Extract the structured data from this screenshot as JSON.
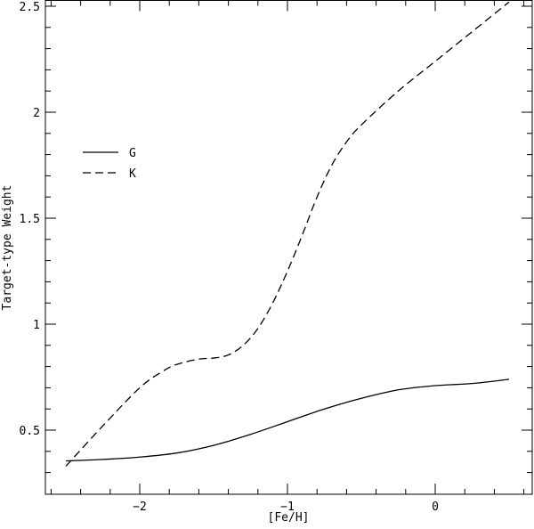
{
  "chart_data": {
    "type": "line",
    "title": "",
    "xlabel": "[Fe/H]",
    "ylabel": "Target-type Weight",
    "xlim": [
      -2.64,
      0.66
    ],
    "ylim": [
      0.2,
      2.5
    ],
    "x_ticks": [
      -2,
      -1,
      0
    ],
    "x_tick_labels": [
      "−2",
      "−1",
      "0"
    ],
    "y_ticks": [
      0.5,
      1,
      1.5,
      2,
      2.5
    ],
    "y_tick_labels": [
      "0.5",
      "1",
      "1.5",
      "2",
      "2.5"
    ],
    "grid": false,
    "legend_position": "upper left",
    "series": [
      {
        "name": "G",
        "style": "solid",
        "x": [
          -2.5,
          -2.25,
          -2.0,
          -1.75,
          -1.5,
          -1.25,
          -1.0,
          -0.75,
          -0.5,
          -0.25,
          0.0,
          0.25,
          0.5
        ],
        "y": [
          0.355,
          0.362,
          0.373,
          0.392,
          0.428,
          0.48,
          0.54,
          0.6,
          0.65,
          0.69,
          0.71,
          0.72,
          0.74
        ]
      },
      {
        "name": "K",
        "style": "dashed",
        "x": [
          -2.5,
          -2.25,
          -2.0,
          -1.85,
          -1.75,
          -1.6,
          -1.5,
          -1.4,
          -1.3,
          -1.2,
          -1.1,
          -1.0,
          -0.9,
          -0.8,
          -0.7,
          -0.6,
          -0.5,
          -0.25,
          0.0,
          0.25,
          0.5
        ],
        "y": [
          0.33,
          0.52,
          0.7,
          0.775,
          0.81,
          0.835,
          0.84,
          0.855,
          0.9,
          0.98,
          1.1,
          1.25,
          1.42,
          1.6,
          1.75,
          1.86,
          1.94,
          2.1,
          2.24,
          2.38,
          2.52
        ]
      }
    ]
  }
}
